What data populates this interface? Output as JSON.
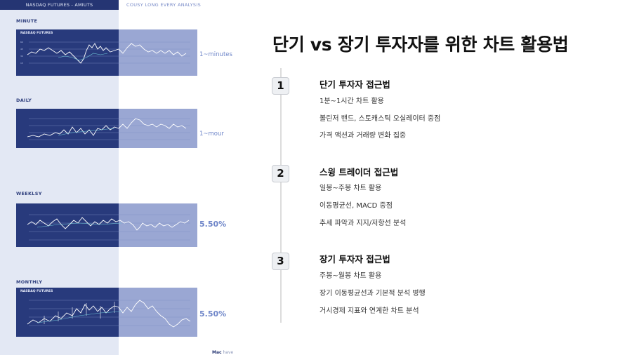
{
  "left": {
    "header_dark": "NASDAQ FUTURES - AMIUTS",
    "header_light": "COUSY LONG EVERY ANALYSIS",
    "panels": [
      {
        "label": "MINUTE",
        "chart_title": "NASDAQ FUTURES",
        "side_value": "1~minutes"
      },
      {
        "label": "DAILY",
        "chart_title": "",
        "side_value": "1~mour"
      },
      {
        "label": "WEEKLSY",
        "chart_title": "",
        "side_value": "5.50%"
      },
      {
        "label": "MONTHLY",
        "chart_title": "NASDAQ FUTURES",
        "side_value": "5.50%"
      }
    ],
    "brand_bold": "Mac",
    "brand_rest": "have"
  },
  "title": "단기 vs 장기 투자자를 위한 차트 활용법",
  "steps": [
    {
      "number": "1",
      "title": "단기 투자자 접근법",
      "items": [
        "1분~1시간 차트 활용",
        "볼린저 밴드, 스토캐스틱 오실레이터 중점",
        "가격 액션과 거래량 변화 집중"
      ]
    },
    {
      "number": "2",
      "title": "스윙 트레이더 접근법",
      "items": [
        "일봉~주봉 차트 활용",
        "이동평균선, MACD 중점",
        "추세 파악과 지지/저항선 분석"
      ]
    },
    {
      "number": "3",
      "title": "장기 투자자 접근법",
      "items": [
        "주봉~월봉 차트 활용",
        "장기 이동평균선과 기본적 분석 병행",
        "거시경제 지표와 연계한 차트 분석"
      ]
    }
  ],
  "colors": {
    "dark_panel": "#283a7c",
    "light_panel": "#9aa7d3",
    "accent": "#6f86c9",
    "background": "#ffffff"
  }
}
